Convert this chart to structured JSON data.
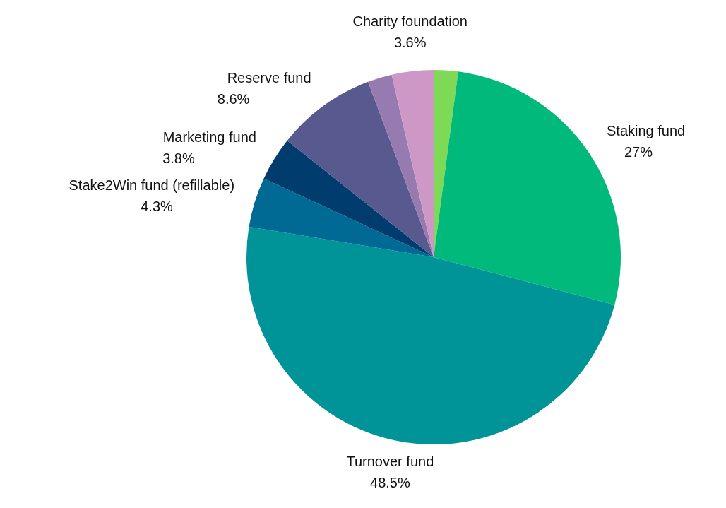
{
  "chart_data": {
    "type": "pie",
    "categories": [
      null,
      "Staking fund",
      "Turnover fund",
      "Stake2Win fund (refillable)",
      "Marketing fund",
      "Reserve fund",
      null,
      "Charity foundation"
    ],
    "values": [
      2.1,
      27,
      48.5,
      4.3,
      3.8,
      8.6,
      2.1,
      3.6
    ],
    "value_labels": [
      null,
      "27%",
      "48.5%",
      "4.3%",
      "3.8%",
      "8.6%",
      null,
      "3.6%"
    ],
    "colors": [
      "#7ed957",
      "#00b97a",
      "#009499",
      "#006a94",
      "#003d6e",
      "#58598f",
      "#967ab0",
      "#cd98c6"
    ]
  }
}
